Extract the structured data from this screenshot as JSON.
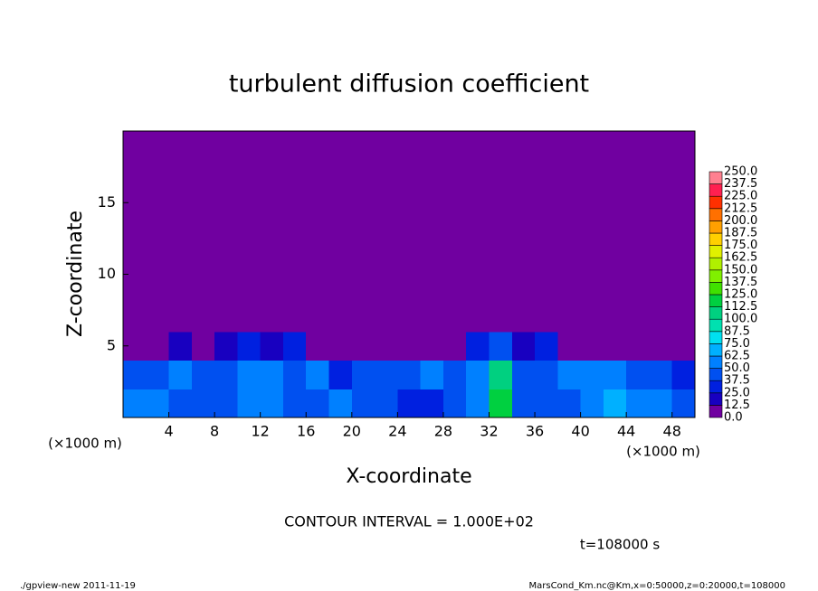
{
  "chart_data": {
    "type": "heatmap",
    "title": "turbulent diffusion coefficient",
    "x_label": "X-coordinate",
    "y_label": "Z-coordinate",
    "x_unit": "(×1000 m)",
    "contour_note": "CONTOUR INTERVAL = 1.000E+02",
    "time_label": "t=108000 s",
    "footer_left": "./gpview-new  2011-11-19",
    "footer_right": "MarsCond_Km.nc@Km,x=0:50000,z=0:20000,t=108000",
    "xlim": [
      0,
      50
    ],
    "ylim": [
      0,
      20
    ],
    "xticks": [
      4,
      8,
      12,
      16,
      20,
      24,
      28,
      32,
      36,
      40,
      44,
      48
    ],
    "yticks": [
      5,
      10,
      15
    ],
    "x": [
      1,
      3,
      5,
      7,
      9,
      11,
      13,
      15,
      17,
      19,
      21,
      23,
      25,
      27,
      29,
      31,
      33,
      35,
      37,
      39,
      41,
      43,
      45,
      47,
      49
    ],
    "y": [
      1,
      3,
      5,
      7,
      9,
      11,
      13,
      15,
      17,
      19
    ],
    "z": [
      [
        55,
        50,
        45,
        40,
        45,
        55,
        60,
        45,
        40,
        50,
        45,
        40,
        35,
        30,
        45,
        55,
        120,
        45,
        40,
        45,
        60,
        70,
        55,
        50,
        45
      ],
      [
        45,
        40,
        50,
        45,
        40,
        55,
        50,
        45,
        60,
        30,
        40,
        45,
        45,
        50,
        40,
        50,
        110,
        40,
        45,
        50,
        55,
        60,
        45,
        40,
        35
      ],
      [
        10,
        5,
        15,
        10,
        20,
        30,
        15,
        25,
        10,
        5,
        5,
        5,
        5,
        5,
        5,
        30,
        40,
        20,
        30,
        10,
        5,
        5,
        10,
        5,
        5
      ],
      [
        0,
        0,
        0,
        0,
        0,
        5,
        5,
        0,
        0,
        0,
        0,
        0,
        0,
        0,
        0,
        0,
        5,
        0,
        0,
        0,
        0,
        0,
        5,
        5,
        0
      ],
      [
        0,
        0,
        0,
        0,
        0,
        0,
        0,
        0,
        0,
        0,
        0,
        0,
        0,
        0,
        0,
        0,
        0,
        0,
        0,
        0,
        0,
        0,
        0,
        0,
        0
      ],
      [
        0,
        0,
        0,
        0,
        0,
        5,
        0,
        0,
        0,
        0,
        0,
        0,
        0,
        0,
        0,
        0,
        0,
        0,
        0,
        0,
        0,
        0,
        0,
        0,
        0
      ],
      [
        0,
        0,
        0,
        0,
        0,
        0,
        0,
        0,
        0,
        0,
        0,
        0,
        0,
        0,
        0,
        0,
        0,
        0,
        0,
        0,
        0,
        0,
        0,
        0,
        0
      ],
      [
        0,
        0,
        0,
        0,
        0,
        0,
        0,
        0,
        0,
        0,
        0,
        0,
        0,
        0,
        0,
        0,
        0,
        0,
        0,
        0,
        0,
        0,
        0,
        0,
        0
      ],
      [
        0,
        0,
        0,
        0,
        0,
        0,
        0,
        0,
        0,
        0,
        0,
        0,
        0,
        0,
        0,
        0,
        0,
        0,
        0,
        0,
        0,
        0,
        0,
        0,
        0
      ],
      [
        0,
        0,
        0,
        0,
        0,
        0,
        0,
        0,
        0,
        0,
        0,
        0,
        0,
        0,
        0,
        0,
        0,
        0,
        0,
        0,
        0,
        0,
        0,
        0,
        0
      ]
    ],
    "levels": [
      {
        "value": 0,
        "label": "0.0"
      },
      12.5,
      {
        "value": 25,
        "label": "25.0"
      },
      37.5,
      {
        "value": 50,
        "label": "50.0"
      },
      62.5,
      {
        "value": 75,
        "label": "75.0"
      },
      87.5,
      {
        "value": 100,
        "label": "100.0"
      },
      112.5,
      {
        "value": 125,
        "label": "125.0"
      },
      137.5,
      {
        "value": 150,
        "label": "150.0"
      },
      162.5,
      {
        "value": 175,
        "label": "175.0"
      },
      187.5,
      {
        "value": 200,
        "label": "200.0"
      },
      212.5,
      {
        "value": 225,
        "label": "225.0"
      },
      237.5,
      {
        "value": 250,
        "label": "250.0"
      }
    ],
    "colors": [
      "#7000a0",
      "#1800c0",
      "#0020e0",
      "#0050f0",
      "#0080ff",
      "#00b0ff",
      "#00e0f0",
      "#00e0b0",
      "#00d080",
      "#00d040",
      "#40e000",
      "#80f000",
      "#b0f000",
      "#e0f000",
      "#ffd000",
      "#ffa000",
      "#ff7000",
      "#ff3000",
      "#ff2050",
      "#ff8090"
    ]
  }
}
